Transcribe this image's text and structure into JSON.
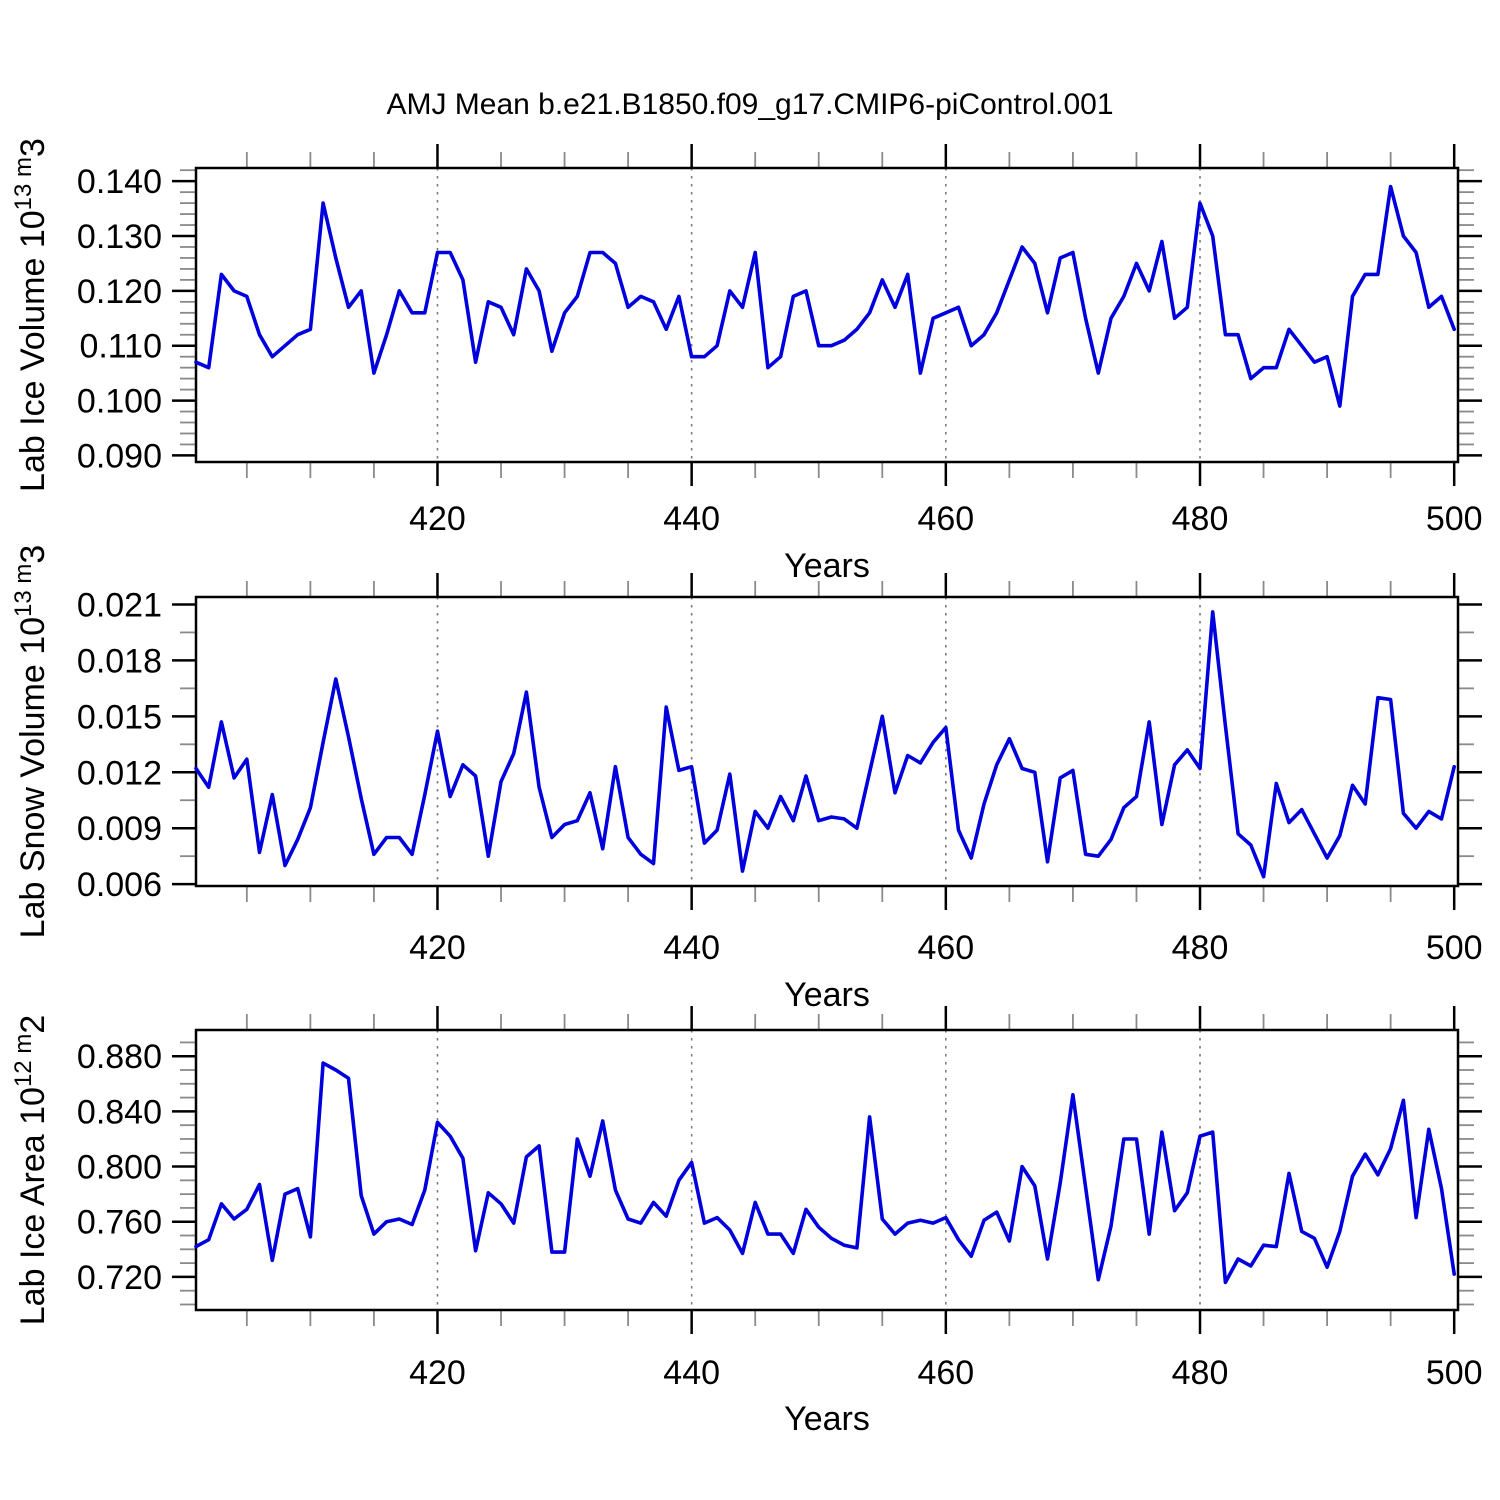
{
  "title": "AMJ Mean b.e21.B1850.f09_g17.CMIP6-piControl.001",
  "line_color": "#0000dd",
  "axis_color": "#000000",
  "minor_tick_color": "#8a8a8a",
  "grid_color": "#7a7a7a",
  "chart_data": [
    {
      "type": "line",
      "name": "ice-volume",
      "ylabel": "Lab Ice Volume 10^13 m^3",
      "xlabel": "Years",
      "x_start": 401,
      "x_end": 500,
      "xlim": [
        401,
        500.3
      ],
      "ylim": [
        0.0888,
        0.1424
      ],
      "xticks": [
        420,
        440,
        460,
        480,
        500
      ],
      "xtick_labels": [
        "420",
        "440",
        "460",
        "480",
        "500"
      ],
      "xminor_step": 5,
      "gridlines": [
        420,
        440,
        460,
        480
      ],
      "yticks": [
        0.09,
        0.1,
        0.11,
        0.12,
        0.13,
        0.14
      ],
      "ytick_labels": [
        "0.090",
        "0.100",
        "0.110",
        "0.120",
        "0.130",
        "0.140"
      ],
      "yminor_step": 0.002,
      "values": [
        0.107,
        0.106,
        0.123,
        0.12,
        0.119,
        0.112,
        0.108,
        0.11,
        0.112,
        0.113,
        0.136,
        0.126,
        0.117,
        0.12,
        0.105,
        0.112,
        0.12,
        0.116,
        0.116,
        0.127,
        0.127,
        0.122,
        0.107,
        0.118,
        0.117,
        0.112,
        0.124,
        0.12,
        0.109,
        0.116,
        0.119,
        0.127,
        0.127,
        0.125,
        0.117,
        0.119,
        0.118,
        0.113,
        0.119,
        0.108,
        0.108,
        0.11,
        0.12,
        0.117,
        0.127,
        0.106,
        0.108,
        0.119,
        0.12,
        0.11,
        0.11,
        0.111,
        0.113,
        0.116,
        0.122,
        0.117,
        0.123,
        0.105,
        0.115,
        0.116,
        0.117,
        0.11,
        0.112,
        0.116,
        0.122,
        0.128,
        0.125,
        0.116,
        0.126,
        0.127,
        0.115,
        0.105,
        0.115,
        0.119,
        0.125,
        0.12,
        0.129,
        0.115,
        0.117,
        0.136,
        0.13,
        0.112,
        0.112,
        0.104,
        0.106,
        0.106,
        0.113,
        0.11,
        0.107,
        0.108,
        0.099,
        0.119,
        0.123,
        0.123,
        0.139,
        0.13,
        0.127,
        0.117,
        0.119,
        0.113
      ]
    },
    {
      "type": "line",
      "name": "snow-volume",
      "ylabel": "Lab Snow Volume 10^13 m^3",
      "xlabel": "Years",
      "x_start": 401,
      "x_end": 500,
      "xlim": [
        401,
        500.3
      ],
      "ylim": [
        0.0059,
        0.0214
      ],
      "xticks": [
        420,
        440,
        460,
        480,
        500
      ],
      "xtick_labels": [
        "420",
        "440",
        "460",
        "480",
        "500"
      ],
      "xminor_step": 5,
      "gridlines": [
        420,
        440,
        460,
        480
      ],
      "yticks": [
        0.006,
        0.009,
        0.012,
        0.015,
        0.018,
        0.021
      ],
      "ytick_labels": [
        "0.006",
        "0.009",
        "0.012",
        "0.015",
        "0.018",
        "0.021"
      ],
      "yminor_step": 0.0015,
      "values": [
        0.0122,
        0.0112,
        0.0147,
        0.0117,
        0.0127,
        0.0077,
        0.0108,
        0.007,
        0.0084,
        0.0101,
        0.0136,
        0.017,
        0.0139,
        0.0106,
        0.0076,
        0.0085,
        0.0085,
        0.0076,
        0.0108,
        0.0142,
        0.0107,
        0.0124,
        0.0118,
        0.0075,
        0.0115,
        0.013,
        0.0163,
        0.0112,
        0.0085,
        0.0092,
        0.0094,
        0.0109,
        0.0079,
        0.0123,
        0.0085,
        0.0076,
        0.0071,
        0.0155,
        0.0121,
        0.0123,
        0.0082,
        0.0089,
        0.0119,
        0.0067,
        0.0099,
        0.009,
        0.0107,
        0.0094,
        0.0118,
        0.0094,
        0.0096,
        0.0095,
        0.009,
        0.012,
        0.015,
        0.0109,
        0.0129,
        0.0125,
        0.0136,
        0.0144,
        0.0089,
        0.0074,
        0.0103,
        0.0124,
        0.0138,
        0.0122,
        0.012,
        0.0072,
        0.0117,
        0.0121,
        0.0076,
        0.0075,
        0.0084,
        0.0101,
        0.0107,
        0.0147,
        0.0092,
        0.0124,
        0.0132,
        0.0122,
        0.0206,
        0.0145,
        0.0087,
        0.0081,
        0.0064,
        0.0114,
        0.0093,
        0.01,
        0.0087,
        0.0074,
        0.0086,
        0.0113,
        0.0103,
        0.016,
        0.0159,
        0.0098,
        0.009,
        0.0099,
        0.0095,
        0.0123
      ]
    },
    {
      "type": "line",
      "name": "ice-area",
      "ylabel": "Lab Ice Area 10^12 m^2",
      "xlabel": "Years",
      "x_start": 401,
      "x_end": 500,
      "xlim": [
        401,
        500.3
      ],
      "ylim": [
        0.696,
        0.899
      ],
      "xticks": [
        420,
        440,
        460,
        480,
        500
      ],
      "xtick_labels": [
        "420",
        "440",
        "460",
        "480",
        "500"
      ],
      "xminor_step": 5,
      "gridlines": [
        420,
        440,
        460,
        480
      ],
      "yticks": [
        0.72,
        0.76,
        0.8,
        0.84,
        0.88
      ],
      "ytick_labels": [
        "0.720",
        "0.760",
        "0.800",
        "0.840",
        "0.880"
      ],
      "yminor_step": 0.01,
      "values": [
        0.742,
        0.747,
        0.773,
        0.762,
        0.769,
        0.787,
        0.732,
        0.78,
        0.784,
        0.749,
        0.875,
        0.87,
        0.864,
        0.779,
        0.751,
        0.76,
        0.762,
        0.758,
        0.783,
        0.832,
        0.822,
        0.806,
        0.739,
        0.781,
        0.773,
        0.759,
        0.807,
        0.815,
        0.738,
        0.738,
        0.82,
        0.793,
        0.833,
        0.783,
        0.762,
        0.759,
        0.774,
        0.764,
        0.79,
        0.803,
        0.759,
        0.763,
        0.754,
        0.737,
        0.774,
        0.751,
        0.751,
        0.737,
        0.769,
        0.756,
        0.748,
        0.743,
        0.741,
        0.836,
        0.762,
        0.751,
        0.759,
        0.761,
        0.759,
        0.763,
        0.747,
        0.735,
        0.761,
        0.767,
        0.746,
        0.8,
        0.786,
        0.733,
        0.788,
        0.852,
        0.785,
        0.718,
        0.757,
        0.82,
        0.82,
        0.751,
        0.825,
        0.768,
        0.781,
        0.822,
        0.825,
        0.716,
        0.733,
        0.728,
        0.743,
        0.742,
        0.795,
        0.753,
        0.748,
        0.727,
        0.753,
        0.793,
        0.809,
        0.794,
        0.813,
        0.848,
        0.763,
        0.827,
        0.784,
        0.722
      ]
    }
  ]
}
